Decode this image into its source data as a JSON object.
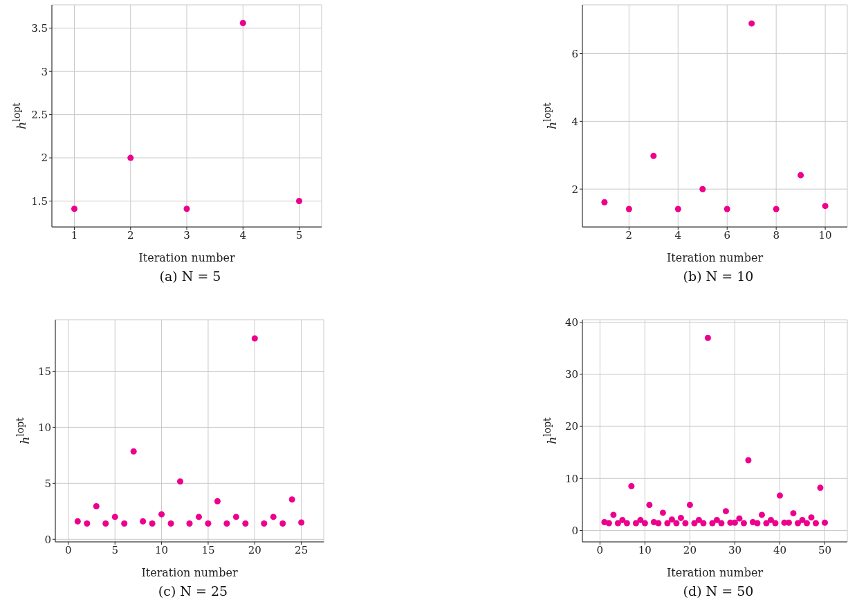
{
  "chart_data": [
    {
      "type": "scatter",
      "title": "(a) N = 5",
      "xlabel": "Iteration number",
      "ylabel": "h$^{lopt}$",
      "marker": "circle",
      "grid": true,
      "x": [
        1,
        2,
        3,
        4,
        5
      ],
      "series": [
        {
          "color": "#ec008c",
          "values": [
            1.41,
            2,
            1.41,
            3.56,
            1.5
          ]
        }
      ],
      "xlim": [
        0.6,
        5.4
      ],
      "xticks": [
        1,
        2,
        3,
        4,
        5
      ],
      "ylim": [
        1.2,
        3.77
      ],
      "yticks": [
        1.5,
        2,
        2.5,
        3,
        3.5
      ]
    },
    {
      "type": "scatter",
      "title": "(b) N = 10",
      "xlabel": "Iteration number",
      "ylabel": "h$^{lopt}$",
      "marker": "circle",
      "grid": true,
      "x": [
        1,
        2,
        3,
        4,
        5,
        6,
        7,
        8,
        9,
        10
      ],
      "series": [
        {
          "color": "#ec008c",
          "values": [
            1.61,
            1.41,
            2.98,
            1.41,
            2,
            1.41,
            6.89,
            1.41,
            2.41,
            1.5
          ]
        }
      ],
      "xlim": [
        0.1,
        10.9
      ],
      "xticks": [
        2,
        4,
        6,
        8,
        10
      ],
      "ylim": [
        0.88,
        7.44
      ],
      "yticks": [
        2,
        4,
        6
      ]
    },
    {
      "type": "scatter",
      "title": "(c) N = 25",
      "xlabel": "Iteration number",
      "ylabel": "h$^{lopt}$",
      "marker": "circle",
      "grid": true,
      "x": [
        1,
        2,
        3,
        4,
        5,
        6,
        7,
        8,
        9,
        10,
        11,
        12,
        13,
        14,
        15,
        16,
        17,
        18,
        19,
        20,
        21,
        22,
        23,
        24,
        25
      ],
      "series": [
        {
          "color": "#ec008c",
          "values": [
            1.6,
            1.41,
            2.95,
            1.41,
            2,
            1.41,
            7.85,
            1.6,
            1.41,
            2.23,
            1.41,
            5.16,
            1.41,
            2,
            1.41,
            3.4,
            1.41,
            2,
            1.41,
            17.93,
            1.41,
            2,
            1.41,
            3.55,
            1.5
          ]
        }
      ],
      "xlim": [
        -1.4,
        27.4
      ],
      "xticks": [
        0,
        5,
        10,
        15,
        20,
        25
      ],
      "ylim": [
        -0.23,
        19.6
      ],
      "yticks": [
        0,
        5,
        10,
        15
      ]
    },
    {
      "type": "scatter",
      "title": "(d) N = 50",
      "xlabel": "Iteration number",
      "ylabel": "h$^{lopt}$",
      "marker": "circle",
      "grid": true,
      "x": [
        1,
        2,
        3,
        4,
        5,
        6,
        7,
        8,
        9,
        10,
        11,
        12,
        13,
        14,
        15,
        16,
        17,
        18,
        19,
        20,
        21,
        22,
        23,
        24,
        25,
        26,
        27,
        28,
        29,
        30,
        31,
        32,
        33,
        34,
        35,
        36,
        37,
        38,
        39,
        40,
        41,
        42,
        43,
        44,
        45,
        46,
        47,
        48,
        49,
        50
      ],
      "series": [
        {
          "color": "#ec008c",
          "values": [
            1.6,
            1.4,
            3.0,
            1.4,
            2.0,
            1.4,
            8.5,
            1.4,
            2.0,
            1.4,
            4.9,
            1.6,
            1.4,
            3.4,
            1.4,
            2.1,
            1.4,
            2.4,
            1.4,
            4.9,
            1.4,
            2.0,
            1.4,
            37,
            1.4,
            2.0,
            1.4,
            3.7,
            1.5,
            1.5,
            2.3,
            1.4,
            13.5,
            1.6,
            1.4,
            3.0,
            1.4,
            2.0,
            1.4,
            6.7,
            1.5,
            1.5,
            3.3,
            1.4,
            2.0,
            1.4,
            2.5,
            1.4,
            8.2,
            1.5
          ]
        }
      ],
      "xlim": [
        -3.9,
        55
      ],
      "xticks": [
        0,
        10,
        20,
        30,
        40,
        50
      ],
      "ylim": [
        -2.2,
        40.5
      ],
      "yticks": [
        0,
        10,
        20,
        30,
        40
      ]
    }
  ]
}
